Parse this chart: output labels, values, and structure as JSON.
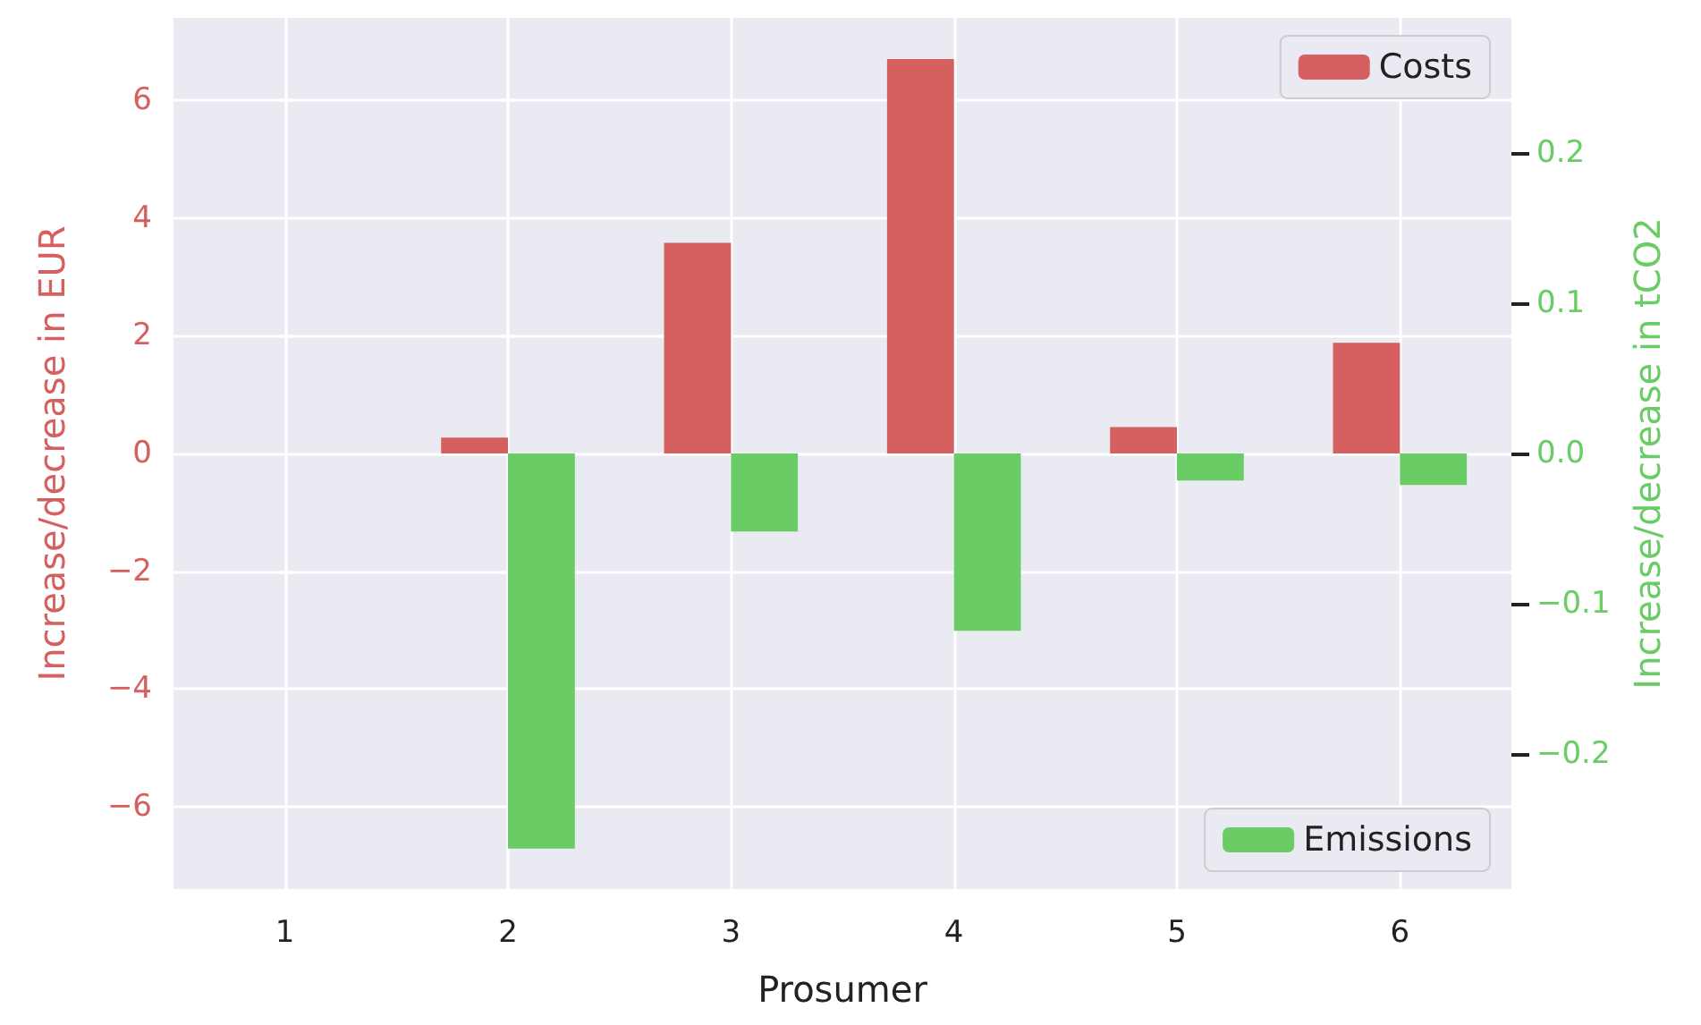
{
  "chart_data": {
    "type": "bar",
    "xlabel": "Prosumer",
    "ylabel": "Increase/decrease in EUR",
    "y2label": "Increase/decrease in tCO2",
    "categories": [
      "1",
      "2",
      "3",
      "4",
      "5",
      "6"
    ],
    "series": [
      {
        "name": "Costs",
        "color": "#d65f5f",
        "values": [
          0,
          0.27,
          3.58,
          6.7,
          0.45,
          1.88
        ]
      },
      {
        "name": "Emissions",
        "color": "#6acc64",
        "axis": "y2",
        "values": [
          0,
          -0.263,
          -0.052,
          -0.118,
          -0.018,
          -0.021
        ]
      }
    ],
    "ylim": [
      -7.4,
      7.4
    ],
    "yticks": [
      {
        "value": -6,
        "label": "−6"
      },
      {
        "value": -4,
        "label": "−4"
      },
      {
        "value": -2,
        "label": "−2"
      },
      0,
      2,
      4,
      6
    ],
    "y2lim": [
      -0.29,
      0.29
    ],
    "y2ticks": [
      {
        "value": -0.2,
        "label": "−0.2"
      },
      {
        "value": -0.1,
        "label": "−0.1"
      },
      {
        "value": 0,
        "label": "0.0"
      },
      0.1,
      0.2
    ],
    "grid": true,
    "legend": "right"
  }
}
